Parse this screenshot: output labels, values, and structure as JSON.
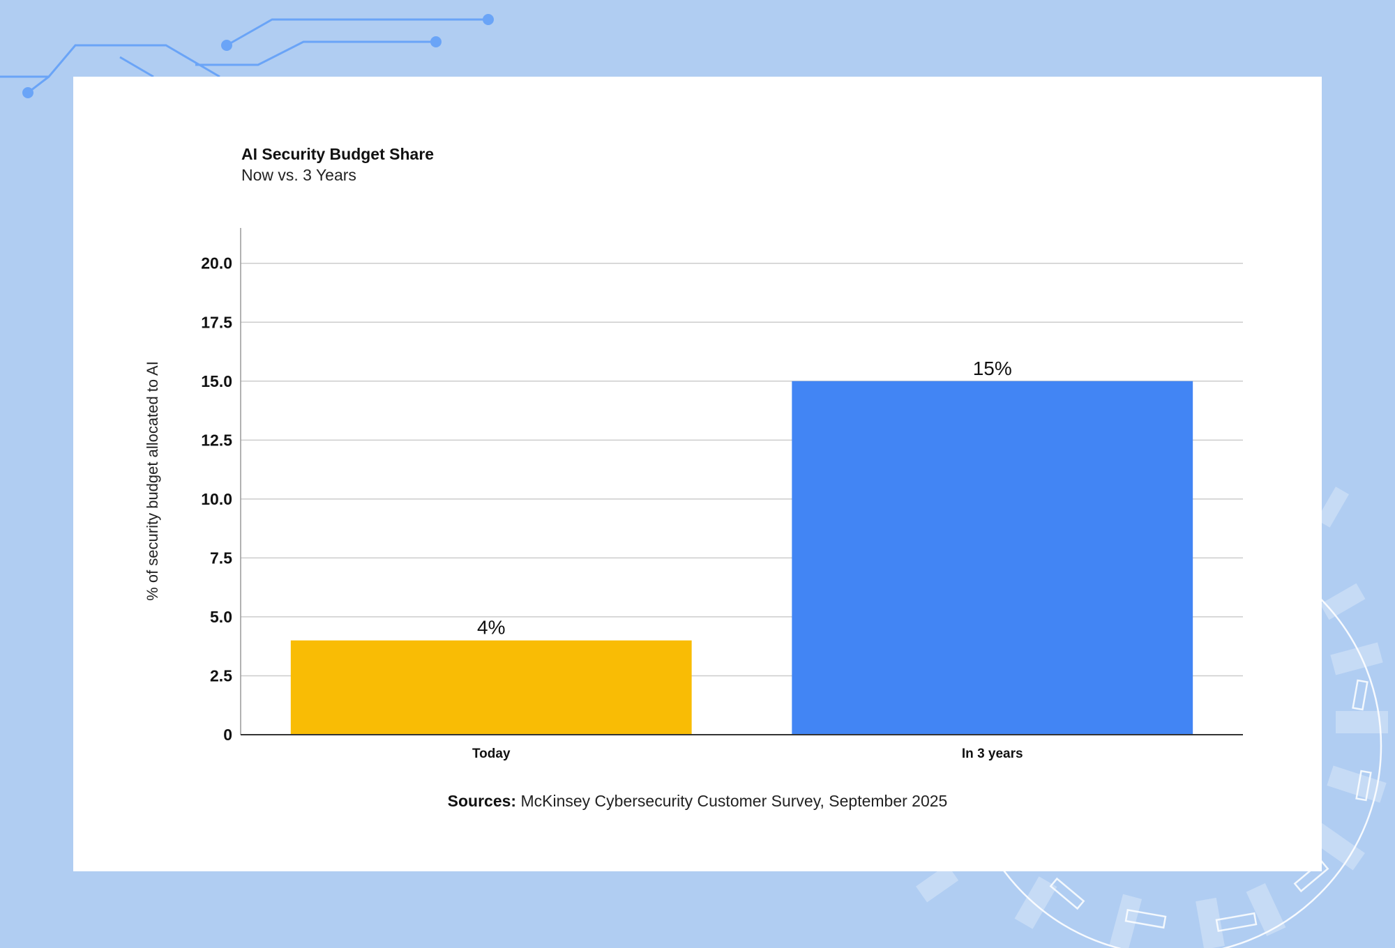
{
  "colors": {
    "background": "#b0cdf2",
    "card": "#ffffff",
    "bar_today": "#f9bc05",
    "bar_future": "#4285f4",
    "decor_line": "#6aa4f7",
    "grid": "#cccccc",
    "axis": "#333333"
  },
  "chart_data": {
    "type": "bar",
    "title": "AI Security Budget Share",
    "subtitle": "Now vs. 3 Years",
    "xlabel": "",
    "ylabel": "% of security budget allocated to AI",
    "categories": [
      "Today",
      "In 3 years"
    ],
    "values": [
      4,
      15
    ],
    "data_labels": [
      "4%",
      "15%"
    ],
    "bar_colors": [
      "#f9bc05",
      "#4285f4"
    ],
    "ylim": [
      0,
      21.5
    ],
    "yticks": [
      0,
      2.5,
      5,
      7.5,
      10,
      12.5,
      15,
      17.5,
      20
    ],
    "ytick_labels": [
      "0",
      "2.5",
      "5.0",
      "7.5",
      "10.0",
      "12.5",
      "15.0",
      "17.5",
      "20.0"
    ],
    "grid": true,
    "legend": "none"
  },
  "footer": {
    "source_label": "Sources:",
    "source_text": " McKinsey Cybersecurity Customer Survey, September 2025"
  }
}
